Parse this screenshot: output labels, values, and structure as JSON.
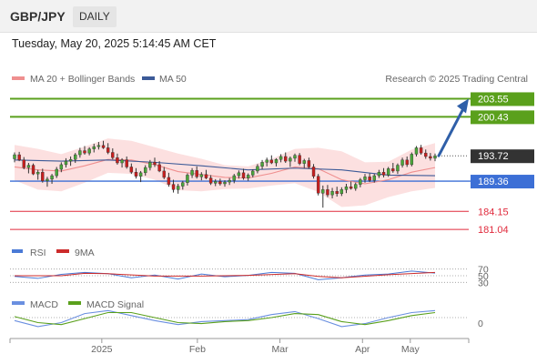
{
  "header": {
    "pair": "GBP/JPY",
    "period": "DAILY",
    "datetime": "Tuesday, May 20, 2025 5:14:45 AM CET"
  },
  "legend": {
    "ma20": "MA 20 + Bollinger Bands",
    "ma50": "MA 50",
    "copyright": "Research © 2025 Trading Central"
  },
  "colors": {
    "up": "#4aa63a",
    "down": "#c81e1e",
    "resistance": "#5aa01c",
    "pivot": "#3c6fd6",
    "support": "#e02a3c",
    "ma20": "#ef8f8f",
    "ma50": "#3c5a98",
    "band": "#fbdada",
    "arrow": "#2f5fa8",
    "rsi": "#4a7ad6",
    "rsi9": "#cc2b2b",
    "macd": "#6a8fe0",
    "signal": "#5aa01c"
  },
  "price_levels": [
    {
      "value": "203.55",
      "type": "resistance"
    },
    {
      "value": "200.43",
      "type": "resistance"
    },
    {
      "value": "193.72",
      "type": "current"
    },
    {
      "value": "189.36",
      "type": "pivot"
    },
    {
      "value": "184.15",
      "type": "support"
    },
    {
      "value": "181.04",
      "type": "support"
    }
  ],
  "rsi_panel": {
    "label": "RSI",
    "ma_label": "9MA",
    "levels": [
      "70",
      "50",
      "30"
    ]
  },
  "macd_panel": {
    "label": "MACD",
    "signal_label": "MACD Signal",
    "zero": "0"
  },
  "x_axis": {
    "labels": [
      "2025",
      "Feb",
      "Mar",
      "Apr",
      "May"
    ]
  },
  "chart_data": {
    "type": "candlestick",
    "x_range": [
      "2024-12-20",
      "2025-05-20"
    ],
    "ylim": [
      179.5,
      205.5
    ],
    "candles": [
      [
        193.2,
        194.3,
        192.6,
        193.9
      ],
      [
        193.9,
        194.4,
        192.8,
        193.0
      ],
      [
        193.0,
        193.5,
        191.4,
        191.7
      ],
      [
        191.7,
        192.5,
        190.7,
        192.1
      ],
      [
        192.1,
        192.4,
        190.4,
        190.6
      ],
      [
        190.6,
        191.3,
        189.6,
        190.9
      ],
      [
        190.9,
        191.5,
        189.1,
        189.4
      ],
      [
        189.4,
        190.1,
        188.4,
        189.7
      ],
      [
        189.7,
        190.6,
        188.9,
        190.3
      ],
      [
        190.3,
        191.8,
        189.9,
        191.4
      ],
      [
        191.4,
        192.6,
        190.9,
        192.2
      ],
      [
        192.2,
        193.3,
        191.7,
        192.8
      ],
      [
        192.8,
        193.6,
        192.0,
        193.1
      ],
      [
        193.1,
        194.2,
        192.5,
        193.9
      ],
      [
        193.9,
        195.1,
        193.4,
        194.6
      ],
      [
        194.6,
        195.4,
        193.9,
        194.2
      ],
      [
        194.2,
        195.2,
        193.8,
        194.9
      ],
      [
        194.9,
        195.8,
        194.3,
        195.3
      ],
      [
        195.3,
        196.1,
        194.8,
        195.5
      ],
      [
        195.5,
        196.3,
        194.9,
        195.1
      ],
      [
        195.1,
        195.9,
        194.0,
        194.3
      ],
      [
        194.3,
        195.0,
        193.1,
        193.4
      ],
      [
        193.4,
        194.1,
        192.2,
        192.5
      ],
      [
        192.5,
        193.3,
        191.7,
        193.0
      ],
      [
        193.0,
        193.6,
        191.5,
        191.8
      ],
      [
        191.8,
        192.4,
        190.6,
        190.9
      ],
      [
        190.9,
        191.6,
        189.8,
        190.2
      ],
      [
        190.2,
        191.1,
        189.2,
        190.8
      ],
      [
        190.8,
        192.1,
        190.3,
        191.7
      ],
      [
        191.7,
        193.0,
        191.2,
        192.6
      ],
      [
        192.6,
        193.4,
        191.8,
        192.2
      ],
      [
        192.2,
        192.8,
        190.9,
        191.1
      ],
      [
        191.1,
        191.8,
        189.7,
        190.0
      ],
      [
        190.0,
        190.8,
        188.4,
        188.8
      ],
      [
        188.8,
        189.6,
        187.4,
        187.9
      ],
      [
        187.9,
        188.9,
        187.2,
        188.5
      ],
      [
        188.5,
        189.4,
        187.9,
        189.1
      ],
      [
        189.1,
        190.7,
        188.6,
        190.4
      ],
      [
        190.4,
        191.6,
        189.9,
        191.2
      ],
      [
        191.2,
        191.9,
        189.8,
        190.1
      ],
      [
        190.1,
        190.9,
        189.5,
        190.5
      ],
      [
        190.5,
        191.3,
        189.7,
        189.9
      ],
      [
        189.9,
        190.4,
        188.7,
        189.0
      ],
      [
        189.0,
        189.7,
        188.5,
        189.3
      ],
      [
        189.3,
        189.8,
        188.6,
        188.9
      ],
      [
        188.9,
        189.5,
        188.4,
        189.2
      ],
      [
        189.2,
        189.9,
        188.7,
        189.5
      ],
      [
        189.5,
        190.6,
        189.0,
        190.3
      ],
      [
        190.3,
        191.2,
        189.8,
        190.8
      ],
      [
        190.8,
        191.5,
        189.6,
        189.9
      ],
      [
        189.9,
        190.7,
        189.4,
        190.4
      ],
      [
        190.4,
        191.4,
        190.0,
        191.1
      ],
      [
        191.1,
        192.3,
        190.7,
        191.9
      ],
      [
        191.9,
        193.0,
        191.4,
        192.6
      ],
      [
        192.6,
        193.4,
        191.9,
        193.0
      ],
      [
        193.0,
        193.8,
        192.3,
        192.5
      ],
      [
        192.5,
        193.3,
        191.9,
        193.1
      ],
      [
        193.1,
        194.0,
        192.6,
        193.6
      ],
      [
        193.6,
        194.3,
        192.5,
        192.8
      ],
      [
        192.8,
        193.6,
        191.8,
        193.3
      ],
      [
        193.3,
        194.1,
        192.7,
        193.8
      ],
      [
        193.8,
        194.2,
        192.1,
        192.4
      ],
      [
        192.4,
        193.2,
        191.6,
        192.9
      ],
      [
        192.9,
        193.4,
        191.5,
        191.8
      ],
      [
        191.8,
        192.3,
        189.8,
        190.2
      ],
      [
        190.2,
        190.6,
        186.9,
        187.3
      ],
      [
        187.3,
        188.6,
        184.8,
        187.9
      ],
      [
        187.9,
        188.7,
        186.6,
        187.0
      ],
      [
        187.0,
        188.2,
        186.4,
        187.6
      ],
      [
        187.6,
        188.4,
        186.7,
        187.2
      ],
      [
        187.2,
        188.3,
        186.8,
        187.9
      ],
      [
        187.9,
        188.9,
        187.3,
        188.4
      ],
      [
        188.4,
        189.3,
        187.9,
        188.1
      ],
      [
        188.1,
        189.1,
        187.7,
        188.8
      ],
      [
        188.8,
        189.9,
        188.3,
        189.6
      ],
      [
        189.6,
        190.6,
        189.1,
        190.1
      ],
      [
        190.1,
        190.7,
        189.2,
        189.5
      ],
      [
        189.5,
        190.6,
        189.1,
        190.3
      ],
      [
        190.3,
        191.3,
        189.9,
        190.9
      ],
      [
        190.9,
        191.6,
        190.0,
        190.4
      ],
      [
        190.4,
        191.8,
        190.1,
        191.5
      ],
      [
        191.5,
        192.5,
        190.8,
        191.1
      ],
      [
        191.1,
        192.4,
        190.6,
        192.1
      ],
      [
        192.1,
        193.4,
        191.7,
        193.0
      ],
      [
        193.0,
        193.6,
        191.8,
        192.2
      ],
      [
        192.2,
        194.3,
        191.9,
        194.0
      ],
      [
        194.0,
        195.4,
        193.6,
        195.1
      ],
      [
        195.1,
        195.6,
        193.9,
        194.2
      ],
      [
        194.2,
        194.8,
        193.2,
        193.6
      ],
      [
        193.6,
        194.2,
        192.9,
        193.3
      ],
      [
        193.3,
        194.1,
        192.8,
        193.72
      ]
    ],
    "ma20": [
      [
        0,
        191.8
      ],
      [
        5,
        191.3
      ],
      [
        10,
        191.1
      ],
      [
        15,
        192.0
      ],
      [
        20,
        193.1
      ],
      [
        25,
        193.0
      ],
      [
        30,
        192.2
      ],
      [
        35,
        191.0
      ],
      [
        40,
        190.5
      ],
      [
        45,
        190.0
      ],
      [
        50,
        189.9
      ],
      [
        55,
        190.7
      ],
      [
        60,
        191.8
      ],
      [
        65,
        191.5
      ],
      [
        70,
        189.6
      ],
      [
        75,
        188.9
      ],
      [
        80,
        189.6
      ],
      [
        85,
        190.9
      ],
      [
        90,
        191.7
      ]
    ],
    "ma50": [
      [
        0,
        193.0
      ],
      [
        10,
        192.8
      ],
      [
        20,
        193.0
      ],
      [
        30,
        192.6
      ],
      [
        40,
        192.0
      ],
      [
        50,
        191.3
      ],
      [
        60,
        191.6
      ],
      [
        70,
        191.3
      ],
      [
        80,
        190.4
      ],
      [
        90,
        190.3
      ]
    ],
    "bollinger_upper": [
      [
        0,
        195.6
      ],
      [
        5,
        194.9
      ],
      [
        10,
        194.0
      ],
      [
        15,
        195.3
      ],
      [
        20,
        196.7
      ],
      [
        25,
        196.3
      ],
      [
        30,
        195.2
      ],
      [
        35,
        194.1
      ],
      [
        40,
        193.2
      ],
      [
        45,
        192.1
      ],
      [
        50,
        191.9
      ],
      [
        55,
        193.2
      ],
      [
        60,
        194.9
      ],
      [
        65,
        195.1
      ],
      [
        70,
        194.5
      ],
      [
        75,
        192.6
      ],
      [
        80,
        192.7
      ],
      [
        85,
        194.8
      ],
      [
        90,
        195.9
      ]
    ],
    "bollinger_lower": [
      [
        0,
        189.5
      ],
      [
        5,
        187.9
      ],
      [
        10,
        187.6
      ],
      [
        15,
        189.1
      ],
      [
        20,
        190.8
      ],
      [
        25,
        190.6
      ],
      [
        30,
        189.6
      ],
      [
        35,
        187.8
      ],
      [
        40,
        187.6
      ],
      [
        45,
        188.0
      ],
      [
        50,
        188.1
      ],
      [
        55,
        188.6
      ],
      [
        60,
        189.0
      ],
      [
        65,
        187.5
      ],
      [
        70,
        184.9
      ],
      [
        75,
        185.2
      ],
      [
        80,
        186.6
      ],
      [
        85,
        187.6
      ],
      [
        90,
        188.2
      ]
    ],
    "target_arrow": {
      "from": 193.72,
      "to": 203.55
    },
    "rsi": [
      [
        0,
        48
      ],
      [
        5,
        42
      ],
      [
        10,
        54
      ],
      [
        15,
        60
      ],
      [
        20,
        56
      ],
      [
        25,
        44
      ],
      [
        30,
        52
      ],
      [
        35,
        40
      ],
      [
        40,
        55
      ],
      [
        45,
        47
      ],
      [
        50,
        51
      ],
      [
        55,
        60
      ],
      [
        60,
        57
      ],
      [
        65,
        38
      ],
      [
        70,
        44
      ],
      [
        75,
        52
      ],
      [
        80,
        55
      ],
      [
        85,
        64
      ],
      [
        90,
        58
      ]
    ],
    "rsi_9ma": [
      [
        0,
        50
      ],
      [
        10,
        50
      ],
      [
        15,
        57
      ],
      [
        20,
        56
      ],
      [
        30,
        49
      ],
      [
        40,
        49
      ],
      [
        50,
        51
      ],
      [
        60,
        56
      ],
      [
        65,
        48
      ],
      [
        70,
        44
      ],
      [
        80,
        53
      ],
      [
        90,
        60
      ]
    ],
    "macd": [
      [
        0,
        -0.3
      ],
      [
        5,
        -0.9
      ],
      [
        10,
        -0.5
      ],
      [
        15,
        0.4
      ],
      [
        20,
        0.7
      ],
      [
        25,
        0.2
      ],
      [
        30,
        -0.3
      ],
      [
        35,
        -0.7
      ],
      [
        40,
        -0.4
      ],
      [
        45,
        -0.3
      ],
      [
        50,
        -0.2
      ],
      [
        55,
        0.3
      ],
      [
        60,
        0.6
      ],
      [
        65,
        -0.1
      ],
      [
        70,
        -0.9
      ],
      [
        75,
        -0.6
      ],
      [
        80,
        0.0
      ],
      [
        85,
        0.5
      ],
      [
        90,
        0.7
      ]
    ],
    "macd_signal": [
      [
        0,
        0.1
      ],
      [
        5,
        -0.5
      ],
      [
        10,
        -0.7
      ],
      [
        15,
        -0.1
      ],
      [
        20,
        0.5
      ],
      [
        25,
        0.5
      ],
      [
        30,
        0.0
      ],
      [
        35,
        -0.5
      ],
      [
        40,
        -0.6
      ],
      [
        45,
        -0.4
      ],
      [
        50,
        -0.3
      ],
      [
        55,
        0.0
      ],
      [
        60,
        0.4
      ],
      [
        65,
        0.3
      ],
      [
        70,
        -0.4
      ],
      [
        75,
        -0.7
      ],
      [
        80,
        -0.3
      ],
      [
        85,
        0.2
      ],
      [
        90,
        0.5
      ]
    ]
  }
}
